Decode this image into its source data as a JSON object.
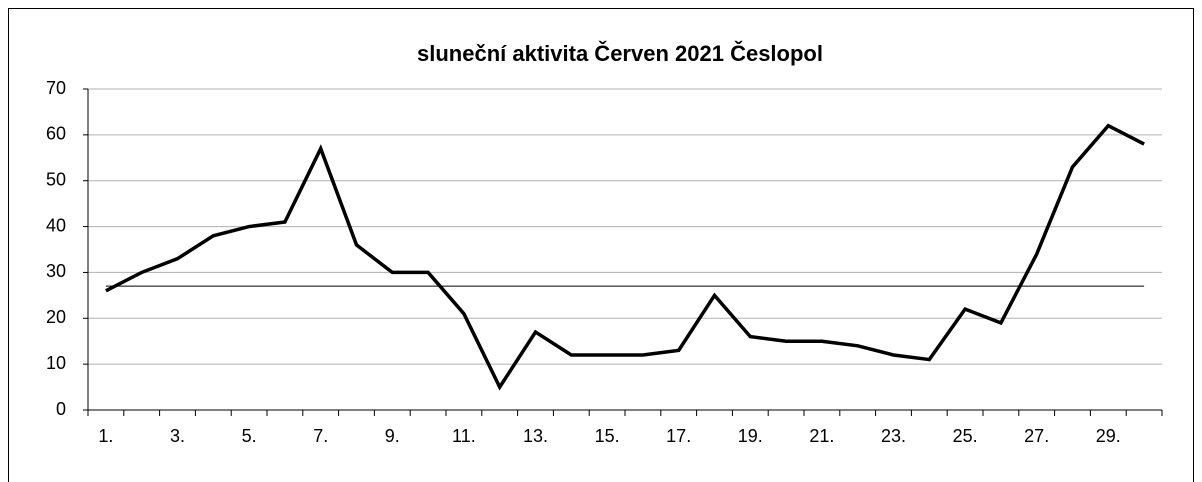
{
  "chart_data": {
    "type": "line",
    "title": "sluneční aktivita Červen 2021 Česlopol",
    "categories": [
      "1.",
      null,
      "3.",
      null,
      "5.",
      null,
      "7.",
      null,
      "9.",
      null,
      "11.",
      null,
      "13.",
      null,
      "15.",
      null,
      "17.",
      null,
      "19.",
      null,
      "21.",
      null,
      "23.",
      null,
      "25.",
      null,
      "27.",
      null,
      "29.",
      null
    ],
    "series": [
      {
        "color": "#000000",
        "values": [
          26,
          30,
          33,
          38,
          40,
          41,
          57,
          36,
          30,
          30,
          21,
          5,
          17,
          12,
          12,
          12,
          13,
          25,
          16,
          15,
          15,
          14,
          12,
          11,
          22,
          19,
          34,
          53,
          62,
          58
        ]
      }
    ],
    "reference_line": {
      "value": 27,
      "color": "#000000"
    },
    "ylim": [
      0,
      70
    ],
    "yticks": [
      0,
      10,
      20,
      30,
      40,
      50,
      60,
      70
    ],
    "grid": true
  }
}
